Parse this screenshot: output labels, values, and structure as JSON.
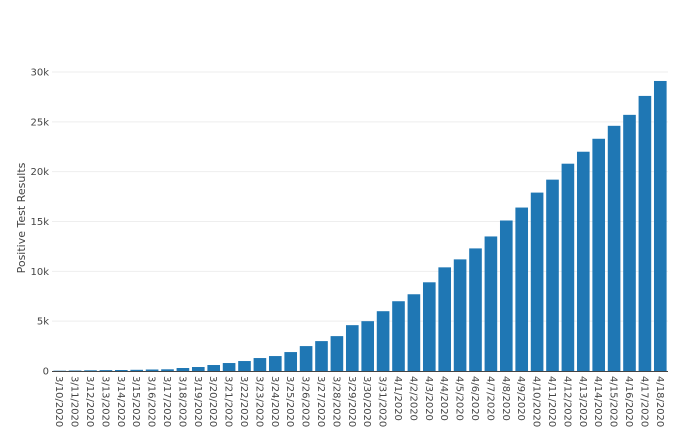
{
  "chart_data": {
    "type": "bar",
    "title": "",
    "xlabel": "",
    "ylabel": "Positive Test Results",
    "ylim": [
      0,
      30000
    ],
    "y_ticks": [
      {
        "value": 0,
        "label": "0"
      },
      {
        "value": 5000,
        "label": "5k"
      },
      {
        "value": 10000,
        "label": "10k"
      },
      {
        "value": 15000,
        "label": "15k"
      },
      {
        "value": 20000,
        "label": "20k"
      },
      {
        "value": 25000,
        "label": "25k"
      },
      {
        "value": 30000,
        "label": "30k"
      }
    ],
    "grid": true,
    "legend": "none",
    "bar_color": "#1f77b4",
    "categories": [
      "3/10/2020",
      "3/11/2020",
      "3/12/2020",
      "3/13/2020",
      "3/14/2020",
      "3/15/2020",
      "3/16/2020",
      "3/17/2020",
      "3/18/2020",
      "3/19/2020",
      "3/20/2020",
      "3/21/2020",
      "3/22/2020",
      "3/23/2020",
      "3/24/2020",
      "3/25/2020",
      "3/26/2020",
      "3/27/2020",
      "3/28/2020",
      "3/29/2020",
      "3/30/2020",
      "3/31/2020",
      "4/1/2020",
      "4/2/2020",
      "4/3/2020",
      "4/4/2020",
      "4/5/2020",
      "4/6/2020",
      "4/7/2020",
      "4/8/2020",
      "4/9/2020",
      "4/10/2020",
      "4/11/2020",
      "4/12/2020",
      "4/13/2020",
      "4/14/2020",
      "4/15/2020",
      "4/16/2020",
      "4/17/2020",
      "4/18/2020"
    ],
    "values": [
      30,
      50,
      70,
      90,
      100,
      120,
      150,
      170,
      300,
      400,
      600,
      800,
      1000,
      1300,
      1500,
      1900,
      2500,
      3000,
      3500,
      4600,
      5000,
      6000,
      7000,
      7700,
      8900,
      10400,
      11200,
      12300,
      13500,
      15100,
      16400,
      17900,
      19200,
      20800,
      22000,
      23300,
      24600,
      25700,
      27600,
      29100
    ]
  }
}
